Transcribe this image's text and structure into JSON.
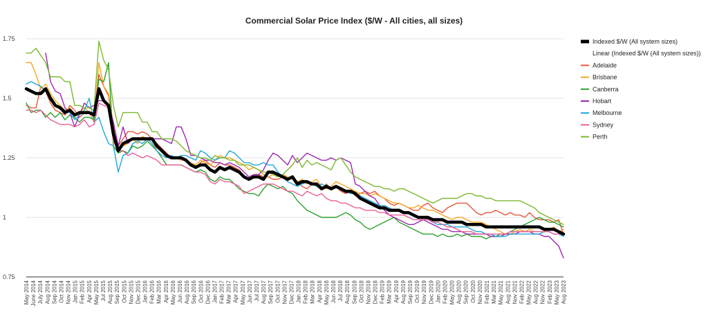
{
  "chart_data": {
    "type": "line",
    "title": "Commercial Solar Price Index ($/W - All cities, all sizes)",
    "xlabel": "",
    "ylabel": "",
    "ylim": [
      0.75,
      1.75
    ],
    "yticks": [
      "0.75",
      "1",
      "1.25",
      "1.5",
      "1.75"
    ],
    "legend_position": "right",
    "grid": "horizontal",
    "x": [
      "May 2014",
      "June 2014",
      "July 2014",
      "Aug 2014",
      "Sep 2014",
      "Oct 2014",
      "Nov 2014",
      "Dec 2014",
      "Jan 2015",
      "Feb 2015",
      "Mar 2015",
      "Apr 2015",
      "May 2015",
      "Jun 2015",
      "Jul 2015",
      "Aug 2015",
      "Sep 2015",
      "Oct 2015",
      "Nov 2015",
      "Dec 2015",
      "Jan 2016",
      "Feb 2016",
      "Mar 2016",
      "Apr 2016",
      "May 2016",
      "Jun 2016",
      "Jul 2016",
      "Aug 2016",
      "Sep 2016",
      "Oct 2016",
      "Nov 2016",
      "Dec 2016",
      "Jan 2017",
      "Feb 2017",
      "Mar 2017",
      "Apr 2017",
      "May 2017",
      "Jun 2017",
      "Jul 2017",
      "Aug 2017",
      "Sep 2017",
      "Oct 2017",
      "Nov 2017",
      "Dec 2017",
      "Jan 2018",
      "Feb 2018",
      "Mar 2018",
      "Apr 2018",
      "May 2018",
      "Jun 2018",
      "Jul 2018",
      "Aug 2018",
      "Sep 2018",
      "Oct 2018",
      "Nov 2018",
      "Dec 2018",
      "Jan 2019",
      "Feb 2019",
      "Mar 2019",
      "Apr 2019",
      "May 2019",
      "Jun 2019",
      "Jul 2019",
      "Aug 2019",
      "Sep 2019",
      "Oct 2019",
      "Nov 2019",
      "Dec 2019",
      "Jan 2020",
      "Feb 2020",
      "Mar 2020",
      "Apr 2020",
      "May 2020",
      "Jun 2020",
      "Jul 2020",
      "Aug 2020",
      "Sep 2020",
      "Oct 2020",
      "Nov 2020",
      "Dec 2020",
      "Jan 2021",
      "Feb 2021",
      "Mar 2021",
      "Apr 2021",
      "May 2021",
      "Jun 2021",
      "Jul 2021",
      "Aug 2021",
      "Sep 2021",
      "Oct 2021",
      "Nov 2021",
      "Dec 2021",
      "Jan 2022",
      "Feb 2022",
      "Mar 2022",
      "Apr 2022",
      "May 2022",
      "Jun 2022",
      "Jul 2022",
      "Aug 2022",
      "Sep 2022",
      "Oct 2022",
      "Nov 2022",
      "Dec 2022",
      "Jan 2023",
      "Feb 2023",
      "Mar 2023",
      "Apr 2023",
      "May 2023",
      "Jun 2023",
      "Jul 2023",
      "Aug 2023"
    ],
    "xtick_labels": [
      "May 2014",
      "June 2014",
      "July 2014",
      "Aug 2014",
      "Sep 2014",
      "Oct 2014",
      "Nov 2014",
      "Jan 2015",
      "Feb 2015",
      "Apr 2015",
      "May 2015",
      "Jul 2015",
      "Aug 2015",
      "Sep 2015",
      "Oct 2015",
      "Nov 2015",
      "Dec 2015",
      "Jan 2016",
      "Feb 2016",
      "Mar 2016",
      "Apr 2016",
      "May 2016",
      "Jun 2016",
      "Aug 2016",
      "Sep 2016",
      "Oct 2016",
      "Dec 2016",
      "Jan 2017",
      "Feb 2017",
      "Mar 2017",
      "Apr 2017",
      "May 2017",
      "Jun 2017",
      "Jul 2017",
      "Aug 2017",
      "Sep 2017",
      "Oct 2017",
      "Nov 2017",
      "Dec 2017",
      "Jan 2018",
      "Feb 2018",
      "Mar 2018",
      "Apr 2018",
      "May 2018",
      "Jun 2018",
      "Jul 2018",
      "Aug 2018",
      "Sep 2018",
      "Oct 2018",
      "Nov 2018",
      "Dec 2018",
      "Feb 2019",
      "Mar 2019",
      "Apr 2019",
      "Aug 2019",
      "Sep 2019",
      "Oct 2019",
      "Nov 2019",
      "Dec 2019",
      "Jan 2020",
      "Feb 2020",
      "May 2020",
      "Aug 2020",
      "Sep 2020",
      "Oct 2020",
      "Nov 2020",
      "Feb 2021",
      "Mar 2021",
      "May 2021",
      "Aug 2021",
      "Nov 2021",
      "Feb 2022",
      "May 2022",
      "Aug 2022",
      "Nov 2022",
      "Feb 2023",
      "May 2023",
      "Aug 2023"
    ],
    "series": [
      {
        "name": "Adelaide",
        "color": "#e8553a",
        "values": [
          1.47,
          1.46,
          1.46,
          1.55,
          1.53,
          1.48,
          1.45,
          1.44,
          1.43,
          1.47,
          1.45,
          1.42,
          1.44,
          1.44,
          1.42,
          1.6,
          1.55,
          1.51,
          1.37,
          1.3,
          1.33,
          1.36,
          1.36,
          1.35,
          1.36,
          1.35,
          1.33,
          1.31,
          1.29,
          1.27,
          1.25,
          1.25,
          1.25,
          1.24,
          1.22,
          1.21,
          1.23,
          1.24,
          1.22,
          1.21,
          1.23,
          1.22,
          1.22,
          1.21,
          1.2,
          1.17,
          1.16,
          1.18,
          1.18,
          1.17,
          1.17,
          1.16,
          1.16,
          1.17,
          1.16,
          1.17,
          1.15,
          1.13,
          1.12,
          1.14,
          1.13,
          1.12,
          1.14,
          1.12,
          1.13,
          1.11,
          1.1,
          1.11,
          1.09,
          1.1,
          1.11,
          1.1,
          1.11,
          1.09,
          1.08,
          1.06,
          1.05,
          1.06,
          1.05,
          1.04,
          1.03,
          1.03,
          1.05,
          1.06,
          1.04,
          1.03,
          1.02,
          1.04,
          1.05,
          1.06,
          1.06,
          1.06,
          1.04,
          1.02,
          1.01,
          1.02,
          1.02,
          1.03,
          1.02,
          1.01,
          1.02,
          1.01,
          1.01,
          1.0,
          1.02,
          1.0,
          0.99,
          0.99,
          0.99,
          0.98,
          0.99,
          0.93
        ]
      },
      {
        "name": "Brisbane",
        "color": "#f5a623",
        "values": [
          1.65,
          1.65,
          1.6,
          1.54,
          1.56,
          1.52,
          1.49,
          1.47,
          1.45,
          1.46,
          1.43,
          1.44,
          1.46,
          1.44,
          1.4,
          1.65,
          1.55,
          1.52,
          1.39,
          1.28,
          1.3,
          1.31,
          1.33,
          1.31,
          1.34,
          1.33,
          1.31,
          1.29,
          1.28,
          1.26,
          1.25,
          1.25,
          1.24,
          1.24,
          1.23,
          1.22,
          1.24,
          1.23,
          1.22,
          1.24,
          1.26,
          1.25,
          1.25,
          1.24,
          1.23,
          1.22,
          1.2,
          1.21,
          1.2,
          1.18,
          1.17,
          1.18,
          1.17,
          1.18,
          1.17,
          1.16,
          1.15,
          1.16,
          1.14,
          1.15,
          1.16,
          1.13,
          1.12,
          1.13,
          1.15,
          1.14,
          1.13,
          1.12,
          1.11,
          1.1,
          1.1,
          1.09,
          1.1,
          1.09,
          1.08,
          1.07,
          1.06,
          1.06,
          1.05,
          1.04,
          1.04,
          1.05,
          1.04,
          1.03,
          1.03,
          1.02,
          1.01,
          1.0,
          0.99,
          1.0,
          1.0,
          0.99,
          0.98,
          0.98,
          0.98,
          0.97,
          0.96,
          0.95,
          0.94,
          0.93,
          0.93,
          0.94,
          0.95,
          0.94,
          0.95,
          0.94,
          0.94,
          0.94,
          0.95,
          0.96,
          0.94,
          0.95
        ]
      },
      {
        "name": "Canberra",
        "color": "#2ca02c",
        "values": [
          1.48,
          1.44,
          1.45,
          1.45,
          1.42,
          1.44,
          1.42,
          1.44,
          1.41,
          1.43,
          1.42,
          1.4,
          1.42,
          1.42,
          1.41,
          1.58,
          1.57,
          1.65,
          1.3,
          1.27,
          1.28,
          1.27,
          1.3,
          1.29,
          1.3,
          1.32,
          1.3,
          1.28,
          1.25,
          1.22,
          1.22,
          1.22,
          1.22,
          1.21,
          1.2,
          1.19,
          1.2,
          1.19,
          1.16,
          1.15,
          1.17,
          1.16,
          1.16,
          1.14,
          1.12,
          1.11,
          1.1,
          1.1,
          1.09,
          1.12,
          1.14,
          1.13,
          1.12,
          1.13,
          1.11,
          1.1,
          1.07,
          1.05,
          1.03,
          1.02,
          1.01,
          1.0,
          1.0,
          1.0,
          1.0,
          1.01,
          1.02,
          1.01,
          0.99,
          0.98,
          0.96,
          0.95,
          0.96,
          0.97,
          0.98,
          0.99,
          1.0,
          0.98,
          0.97,
          0.96,
          0.95,
          0.94,
          0.93,
          0.93,
          0.93,
          0.92,
          0.93,
          0.92,
          0.92,
          0.93,
          0.92,
          0.93,
          0.92,
          0.92,
          0.92,
          0.91,
          0.92,
          0.92,
          0.93,
          0.93,
          0.94,
          0.95,
          0.96,
          0.97,
          0.98,
          0.99,
          1.0,
          0.99,
          0.98,
          0.98,
          0.97,
          0.96
        ]
      },
      {
        "name": "Hobart",
        "color": "#9c27b0",
        "values": [
          null,
          null,
          null,
          null,
          1.69,
          1.57,
          1.53,
          1.52,
          1.46,
          1.44,
          1.38,
          1.43,
          1.48,
          1.46,
          1.47,
          1.49,
          1.49,
          1.47,
          1.4,
          1.3,
          1.38,
          1.31,
          1.33,
          1.33,
          1.33,
          1.33,
          1.33,
          1.33,
          1.33,
          1.32,
          1.31,
          1.38,
          1.38,
          1.33,
          1.26,
          1.26,
          1.25,
          1.24,
          1.24,
          1.23,
          1.23,
          1.22,
          1.23,
          1.22,
          1.21,
          1.19,
          1.17,
          1.18,
          1.18,
          1.2,
          1.24,
          1.27,
          1.26,
          1.24,
          1.22,
          1.26,
          1.23,
          1.25,
          1.27,
          1.26,
          1.25,
          1.24,
          1.24,
          1.25,
          1.24,
          1.25,
          1.24,
          1.23,
          1.14,
          1.13,
          1.11,
          1.09,
          1.08,
          1.05,
          1.03,
          1.01,
          1.0,
          0.99,
          0.98,
          0.97,
          0.97,
          0.98,
          0.99,
          0.98,
          0.97,
          0.96,
          0.95,
          0.95,
          0.94,
          0.94,
          0.94,
          0.93,
          0.93,
          0.93,
          0.93,
          0.93,
          0.92,
          0.92,
          0.92,
          0.93,
          0.93,
          0.93,
          0.94,
          0.94,
          0.94,
          0.93,
          0.93,
          0.92,
          0.92,
          0.9,
          0.88,
          0.83
        ]
      },
      {
        "name": "Melbourne",
        "color": "#1ea7d8",
        "values": [
          1.56,
          1.57,
          1.56,
          1.55,
          1.53,
          1.5,
          1.47,
          1.46,
          1.45,
          1.44,
          1.41,
          1.43,
          1.45,
          1.5,
          1.4,
          1.42,
          1.36,
          1.31,
          1.3,
          1.19,
          1.26,
          1.27,
          1.31,
          1.32,
          1.31,
          1.33,
          1.31,
          1.28,
          1.26,
          1.25,
          1.26,
          1.25,
          1.26,
          1.26,
          1.25,
          1.24,
          1.28,
          1.27,
          1.25,
          1.24,
          1.25,
          1.25,
          1.28,
          1.27,
          1.25,
          1.23,
          1.23,
          1.22,
          1.22,
          1.23,
          1.22,
          1.22,
          1.19,
          1.17,
          1.15,
          1.14,
          1.13,
          1.14,
          1.15,
          1.14,
          1.13,
          1.14,
          1.13,
          1.12,
          1.13,
          1.12,
          1.11,
          1.1,
          1.1,
          1.09,
          1.08,
          1.07,
          1.06,
          1.05,
          1.05,
          1.04,
          1.03,
          1.03,
          1.02,
          1.02,
          1.01,
          1.0,
          1.0,
          0.99,
          0.98,
          0.97,
          0.97,
          0.97,
          0.96,
          0.96,
          0.96,
          0.96,
          0.95,
          0.94,
          0.94,
          0.93,
          0.93,
          0.92,
          0.92,
          0.92,
          0.93,
          0.93,
          0.93,
          0.93,
          0.93,
          0.93,
          0.93,
          0.94,
          0.94,
          0.93,
          0.93,
          0.92
        ]
      },
      {
        "name": "Sydney",
        "color": "#ea5f94",
        "values": [
          1.45,
          1.45,
          1.44,
          1.45,
          1.43,
          1.41,
          1.4,
          1.39,
          1.39,
          1.39,
          1.38,
          1.39,
          1.41,
          1.38,
          1.39,
          1.48,
          1.47,
          1.46,
          1.32,
          1.28,
          1.28,
          1.26,
          1.27,
          1.26,
          1.25,
          1.26,
          1.25,
          1.24,
          1.22,
          1.22,
          1.22,
          1.22,
          1.22,
          1.21,
          1.2,
          1.19,
          1.19,
          1.18,
          1.15,
          1.14,
          1.16,
          1.15,
          1.15,
          1.14,
          1.13,
          1.1,
          1.11,
          1.12,
          1.13,
          1.14,
          1.14,
          1.14,
          1.13,
          1.12,
          1.11,
          1.11,
          1.1,
          1.09,
          1.11,
          1.1,
          1.09,
          1.1,
          1.08,
          1.07,
          1.07,
          1.06,
          1.06,
          1.05,
          1.04,
          1.04,
          1.03,
          1.03,
          1.03,
          1.02,
          1.02,
          1.01,
          1.01,
          1.01,
          1.01,
          1.0,
          0.99,
          0.99,
          0.99,
          0.99,
          0.98,
          0.98,
          0.97,
          0.96,
          0.96,
          0.95,
          0.94,
          0.94,
          0.94,
          0.93,
          0.93,
          0.93,
          0.93,
          0.93,
          0.93,
          0.93,
          0.94,
          0.94,
          0.94,
          0.94,
          0.94,
          0.94,
          0.94,
          0.94,
          0.94,
          0.93,
          0.93,
          0.93
        ]
      },
      {
        "name": "Perth",
        "color": "#7cb82f",
        "values": [
          1.69,
          1.69,
          1.71,
          1.68,
          1.65,
          1.59,
          1.59,
          1.59,
          1.57,
          1.57,
          1.47,
          1.47,
          1.46,
          1.46,
          1.45,
          1.74,
          1.66,
          1.62,
          1.47,
          1.38,
          1.44,
          1.44,
          1.44,
          1.44,
          1.4,
          1.4,
          1.36,
          1.36,
          1.33,
          1.33,
          1.33,
          1.32,
          1.3,
          1.28,
          1.27,
          1.26,
          1.25,
          1.25,
          1.24,
          1.26,
          1.25,
          1.25,
          1.24,
          1.24,
          1.22,
          1.22,
          1.22,
          1.21,
          1.2,
          1.19,
          1.19,
          1.18,
          1.17,
          1.18,
          1.2,
          1.22,
          1.25,
          1.21,
          1.24,
          1.22,
          1.23,
          1.22,
          1.21,
          1.2,
          1.24,
          1.25,
          1.22,
          1.19,
          1.17,
          1.16,
          1.15,
          1.14,
          1.13,
          1.13,
          1.12,
          1.12,
          1.11,
          1.12,
          1.12,
          1.11,
          1.1,
          1.09,
          1.08,
          1.07,
          1.06,
          1.07,
          1.08,
          1.08,
          1.08,
          1.08,
          1.09,
          1.1,
          1.1,
          1.09,
          1.09,
          1.08,
          1.08,
          1.07,
          1.07,
          1.07,
          1.07,
          1.07,
          1.07,
          1.06,
          1.05,
          1.04,
          1.02,
          1.01,
          1.0,
          0.99,
          0.98,
          0.97
        ]
      },
      {
        "name": "Indexed $/W (All system sizes)",
        "color": "#000000",
        "values": [
          1.54,
          1.53,
          1.52,
          1.52,
          1.54,
          1.5,
          1.47,
          1.46,
          1.44,
          1.45,
          1.43,
          1.44,
          1.44,
          1.44,
          1.43,
          1.54,
          1.49,
          1.47,
          1.35,
          1.28,
          1.31,
          1.32,
          1.33,
          1.33,
          1.33,
          1.33,
          1.33,
          1.3,
          1.28,
          1.26,
          1.25,
          1.25,
          1.25,
          1.24,
          1.22,
          1.21,
          1.22,
          1.22,
          1.2,
          1.19,
          1.21,
          1.2,
          1.21,
          1.2,
          1.19,
          1.17,
          1.16,
          1.17,
          1.17,
          1.16,
          1.19,
          1.19,
          1.18,
          1.17,
          1.16,
          1.17,
          1.14,
          1.15,
          1.15,
          1.14,
          1.14,
          1.12,
          1.13,
          1.12,
          1.13,
          1.12,
          1.11,
          1.11,
          1.1,
          1.08,
          1.07,
          1.06,
          1.05,
          1.04,
          1.04,
          1.03,
          1.03,
          1.03,
          1.02,
          1.02,
          1.01,
          1.0,
          1.0,
          1.0,
          0.99,
          0.99,
          0.99,
          0.98,
          0.98,
          0.98,
          0.98,
          0.97,
          0.97,
          0.97,
          0.97,
          0.96,
          0.96,
          0.96,
          0.96,
          0.96,
          0.96,
          0.96,
          0.96,
          0.96,
          0.96,
          0.96,
          0.96,
          0.95,
          0.95,
          0.95,
          0.94,
          0.93
        ]
      }
    ],
    "legend": [
      {
        "label": "Indexed $/W (All system sizes)",
        "color": "#000000",
        "style": "thick"
      },
      {
        "label": "Linear (Indexed $/W (All system sizes))",
        "color": "#000000",
        "style": "none"
      },
      {
        "label": "Adelaide",
        "color": "#e8553a",
        "style": "line"
      },
      {
        "label": "Brisbane",
        "color": "#f5a623",
        "style": "line"
      },
      {
        "label": "Canberra",
        "color": "#2ca02c",
        "style": "line"
      },
      {
        "label": "Hobart",
        "color": "#9c27b0",
        "style": "line"
      },
      {
        "label": "Melbourne",
        "color": "#1ea7d8",
        "style": "line"
      },
      {
        "label": "Sydney",
        "color": "#ea5f94",
        "style": "line"
      },
      {
        "label": "Perth",
        "color": "#7cb82f",
        "style": "line"
      }
    ]
  }
}
